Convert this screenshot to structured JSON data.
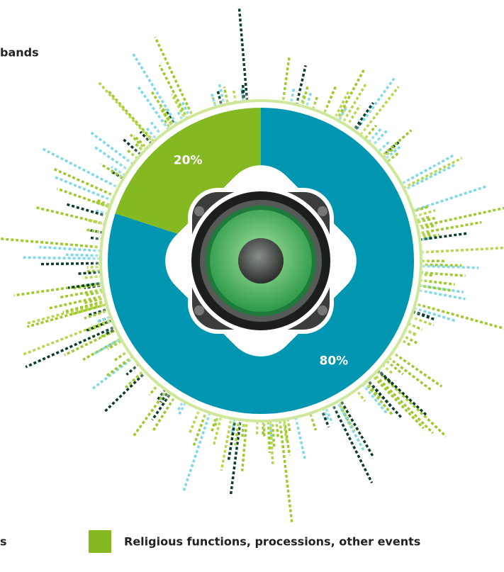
{
  "chart_data": {
    "type": "pie",
    "title": "bands",
    "categories": [
      "s",
      "Religious functions, processions, other events"
    ],
    "values": [
      80,
      20
    ],
    "value_labels": [
      "80%",
      "20%"
    ],
    "colors": [
      "#0096b1",
      "#84b922"
    ]
  }
}
